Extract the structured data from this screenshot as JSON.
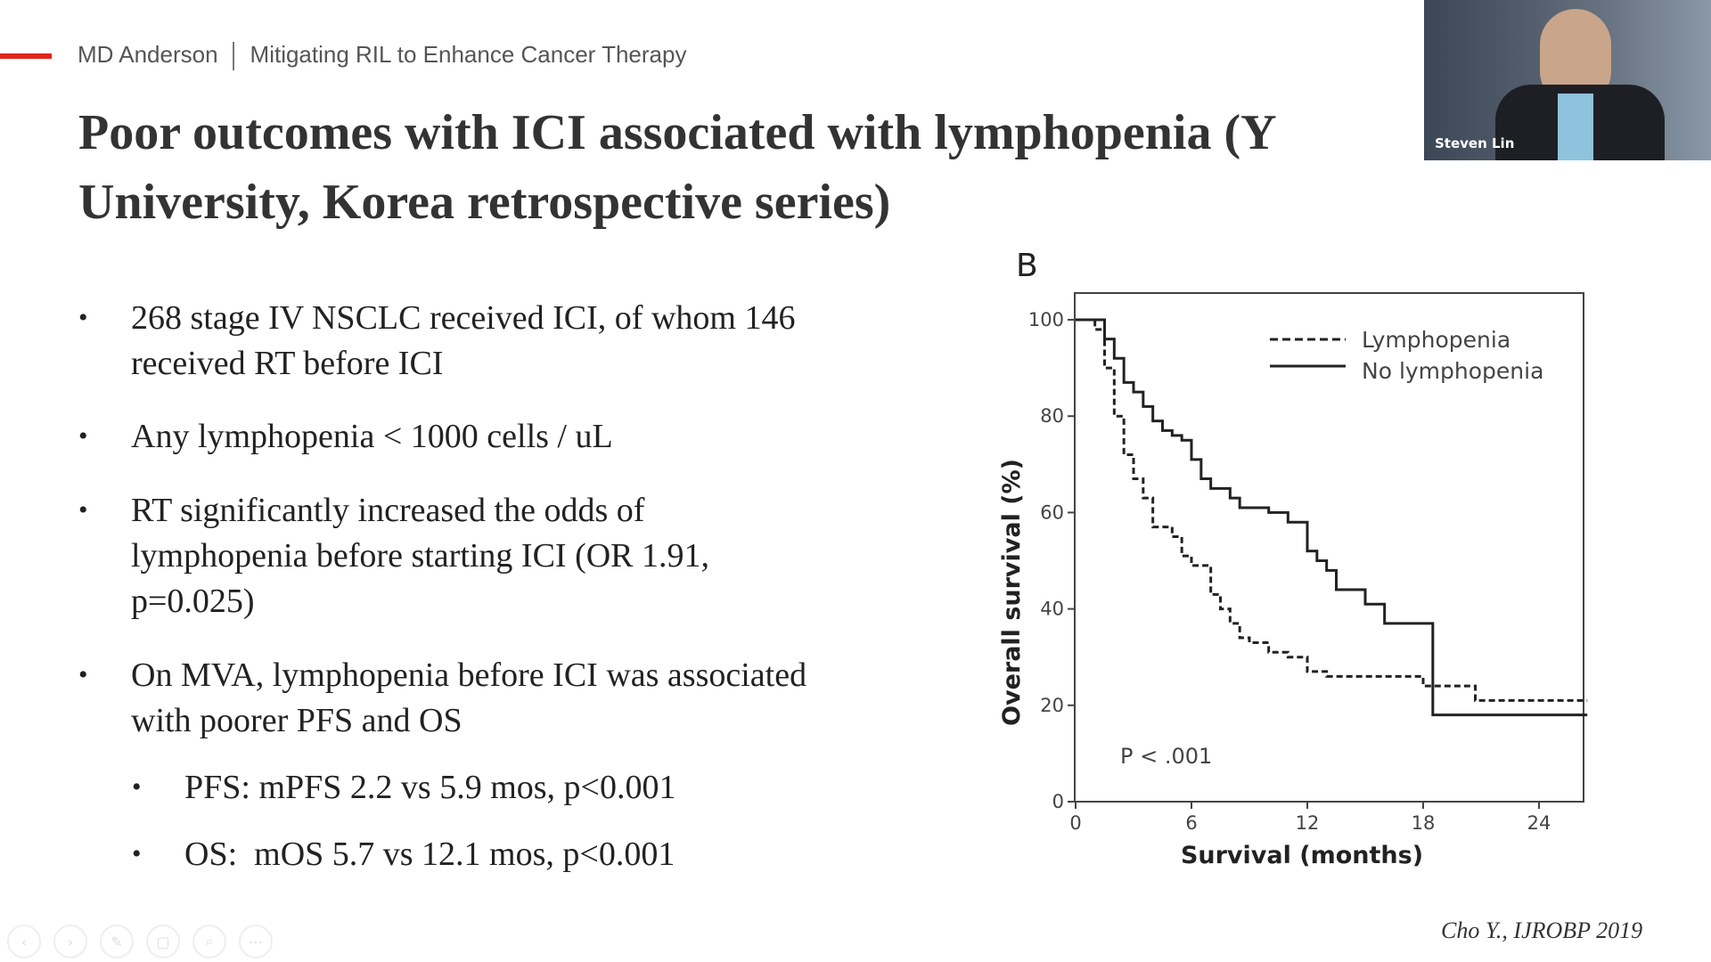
{
  "header": {
    "org": "MD Anderson",
    "deck_title": "Mitigating RIL to Enhance Cancer Therapy",
    "accent_color": "#e0261b"
  },
  "slide": {
    "title": "Poor outcomes with ICI associated with lymphopenia (Y University, Korea retrospective series)",
    "bullets": [
      {
        "text": "268 stage IV NSCLC received ICI, of whom 146 received RT before ICI"
      },
      {
        "text": "Any lymphopenia < 1000 cells / uL"
      },
      {
        "text": "RT significantly increased the odds of lymphopenia before starting ICI (OR 1.91, p=0.025)"
      },
      {
        "text": "On MVA, lymphopenia before ICI was associated with poorer PFS and OS"
      }
    ],
    "sub_bullets": [
      {
        "text": "PFS: mPFS 2.2 vs 5.9 mos, p<0.001"
      },
      {
        "text": "OS:  mOS 5.7 vs 12.1 mos, p<0.001"
      }
    ],
    "citation": "Cho Y., IJROBP 2019"
  },
  "video": {
    "speaker_name": "Steven Lin"
  },
  "toolbar": {
    "icons": [
      "prev-icon",
      "next-icon",
      "pen-icon",
      "slides-icon",
      "zoom-icon",
      "more-icon"
    ]
  },
  "chart_data": {
    "type": "line",
    "panel_label": "B",
    "xlabel": "Survival (months)",
    "ylabel": "Overall survival (%)",
    "xlim": [
      0,
      26.5
    ],
    "ylim": [
      0,
      105
    ],
    "xticks": [
      0,
      6,
      12,
      18,
      24
    ],
    "yticks": [
      0,
      20,
      40,
      60,
      80,
      100
    ],
    "legend_position": "top-right",
    "annotation": "P < .001",
    "series": [
      {
        "name": "Lymphopenia",
        "style": "dashed",
        "points": [
          [
            0,
            100
          ],
          [
            1,
            98
          ],
          [
            1.5,
            90
          ],
          [
            2,
            80
          ],
          [
            2.5,
            72
          ],
          [
            3,
            67
          ],
          [
            3.5,
            63
          ],
          [
            4,
            57
          ],
          [
            5,
            55
          ],
          [
            5.5,
            51
          ],
          [
            6,
            49
          ],
          [
            7,
            43
          ],
          [
            7.5,
            40
          ],
          [
            8,
            37
          ],
          [
            8.5,
            34
          ],
          [
            9,
            33
          ],
          [
            10,
            31
          ],
          [
            11,
            30
          ],
          [
            12,
            27
          ],
          [
            13,
            26
          ],
          [
            17.5,
            26
          ],
          [
            18,
            24
          ],
          [
            20.5,
            24
          ],
          [
            20.7,
            21
          ],
          [
            26.5,
            21
          ]
        ]
      },
      {
        "name": "No lymphopenia",
        "style": "solid",
        "points": [
          [
            0,
            100
          ],
          [
            1,
            100
          ],
          [
            1.5,
            96
          ],
          [
            2,
            92
          ],
          [
            2.5,
            87
          ],
          [
            3,
            85
          ],
          [
            3.5,
            82
          ],
          [
            4,
            79
          ],
          [
            4.5,
            77
          ],
          [
            5,
            76
          ],
          [
            5.5,
            75
          ],
          [
            6,
            71
          ],
          [
            6.5,
            67
          ],
          [
            7,
            65
          ],
          [
            8,
            63
          ],
          [
            8.5,
            61
          ],
          [
            10,
            60
          ],
          [
            11,
            58
          ],
          [
            12,
            52
          ],
          [
            12.5,
            50
          ],
          [
            13,
            48
          ],
          [
            13.5,
            44
          ],
          [
            15,
            41
          ],
          [
            16,
            37
          ],
          [
            18.5,
            37
          ],
          [
            18.5,
            18
          ],
          [
            26.5,
            18
          ]
        ]
      }
    ]
  }
}
